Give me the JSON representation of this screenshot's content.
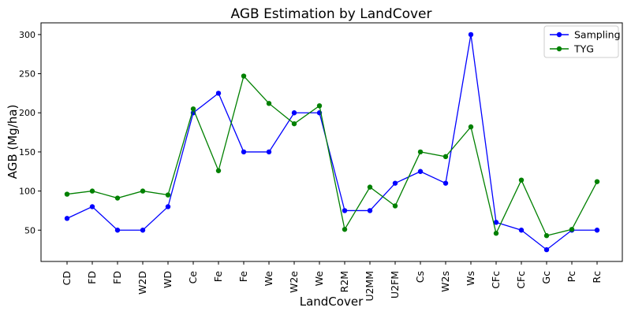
{
  "chart_data": {
    "type": "line",
    "title": "AGB Estimation by LandCover",
    "xlabel": "LandCover",
    "ylabel": "AGB (Mg/ha)",
    "categories": [
      "CD",
      "FD",
      "FD",
      "W2D",
      "WD",
      "Ce",
      "Fe",
      "Fe",
      "We",
      "W2e",
      "We",
      "R2M",
      "U2MM",
      "U2FM",
      "Cs",
      "W2s",
      "Ws",
      "CFc",
      "CFc",
      "Gc",
      "Pc",
      "Rc"
    ],
    "ylim": [
      10,
      315
    ],
    "yticks": [
      50,
      100,
      150,
      200,
      250,
      300
    ],
    "grid": false,
    "legend_position": "top-right",
    "series": [
      {
        "name": "Sampling",
        "color": "#0000ff",
        "values": [
          65,
          80,
          50,
          50,
          80,
          200,
          225,
          150,
          150,
          200,
          200,
          75,
          75,
          110,
          125,
          110,
          300,
          60,
          50,
          25,
          50,
          50
        ]
      },
      {
        "name": "TYG",
        "color": "#008000",
        "values": [
          96,
          100,
          91,
          100,
          95,
          205,
          126,
          247,
          212,
          186,
          209,
          51,
          105,
          81,
          150,
          144,
          182,
          46,
          114,
          43,
          51,
          112
        ]
      }
    ]
  }
}
